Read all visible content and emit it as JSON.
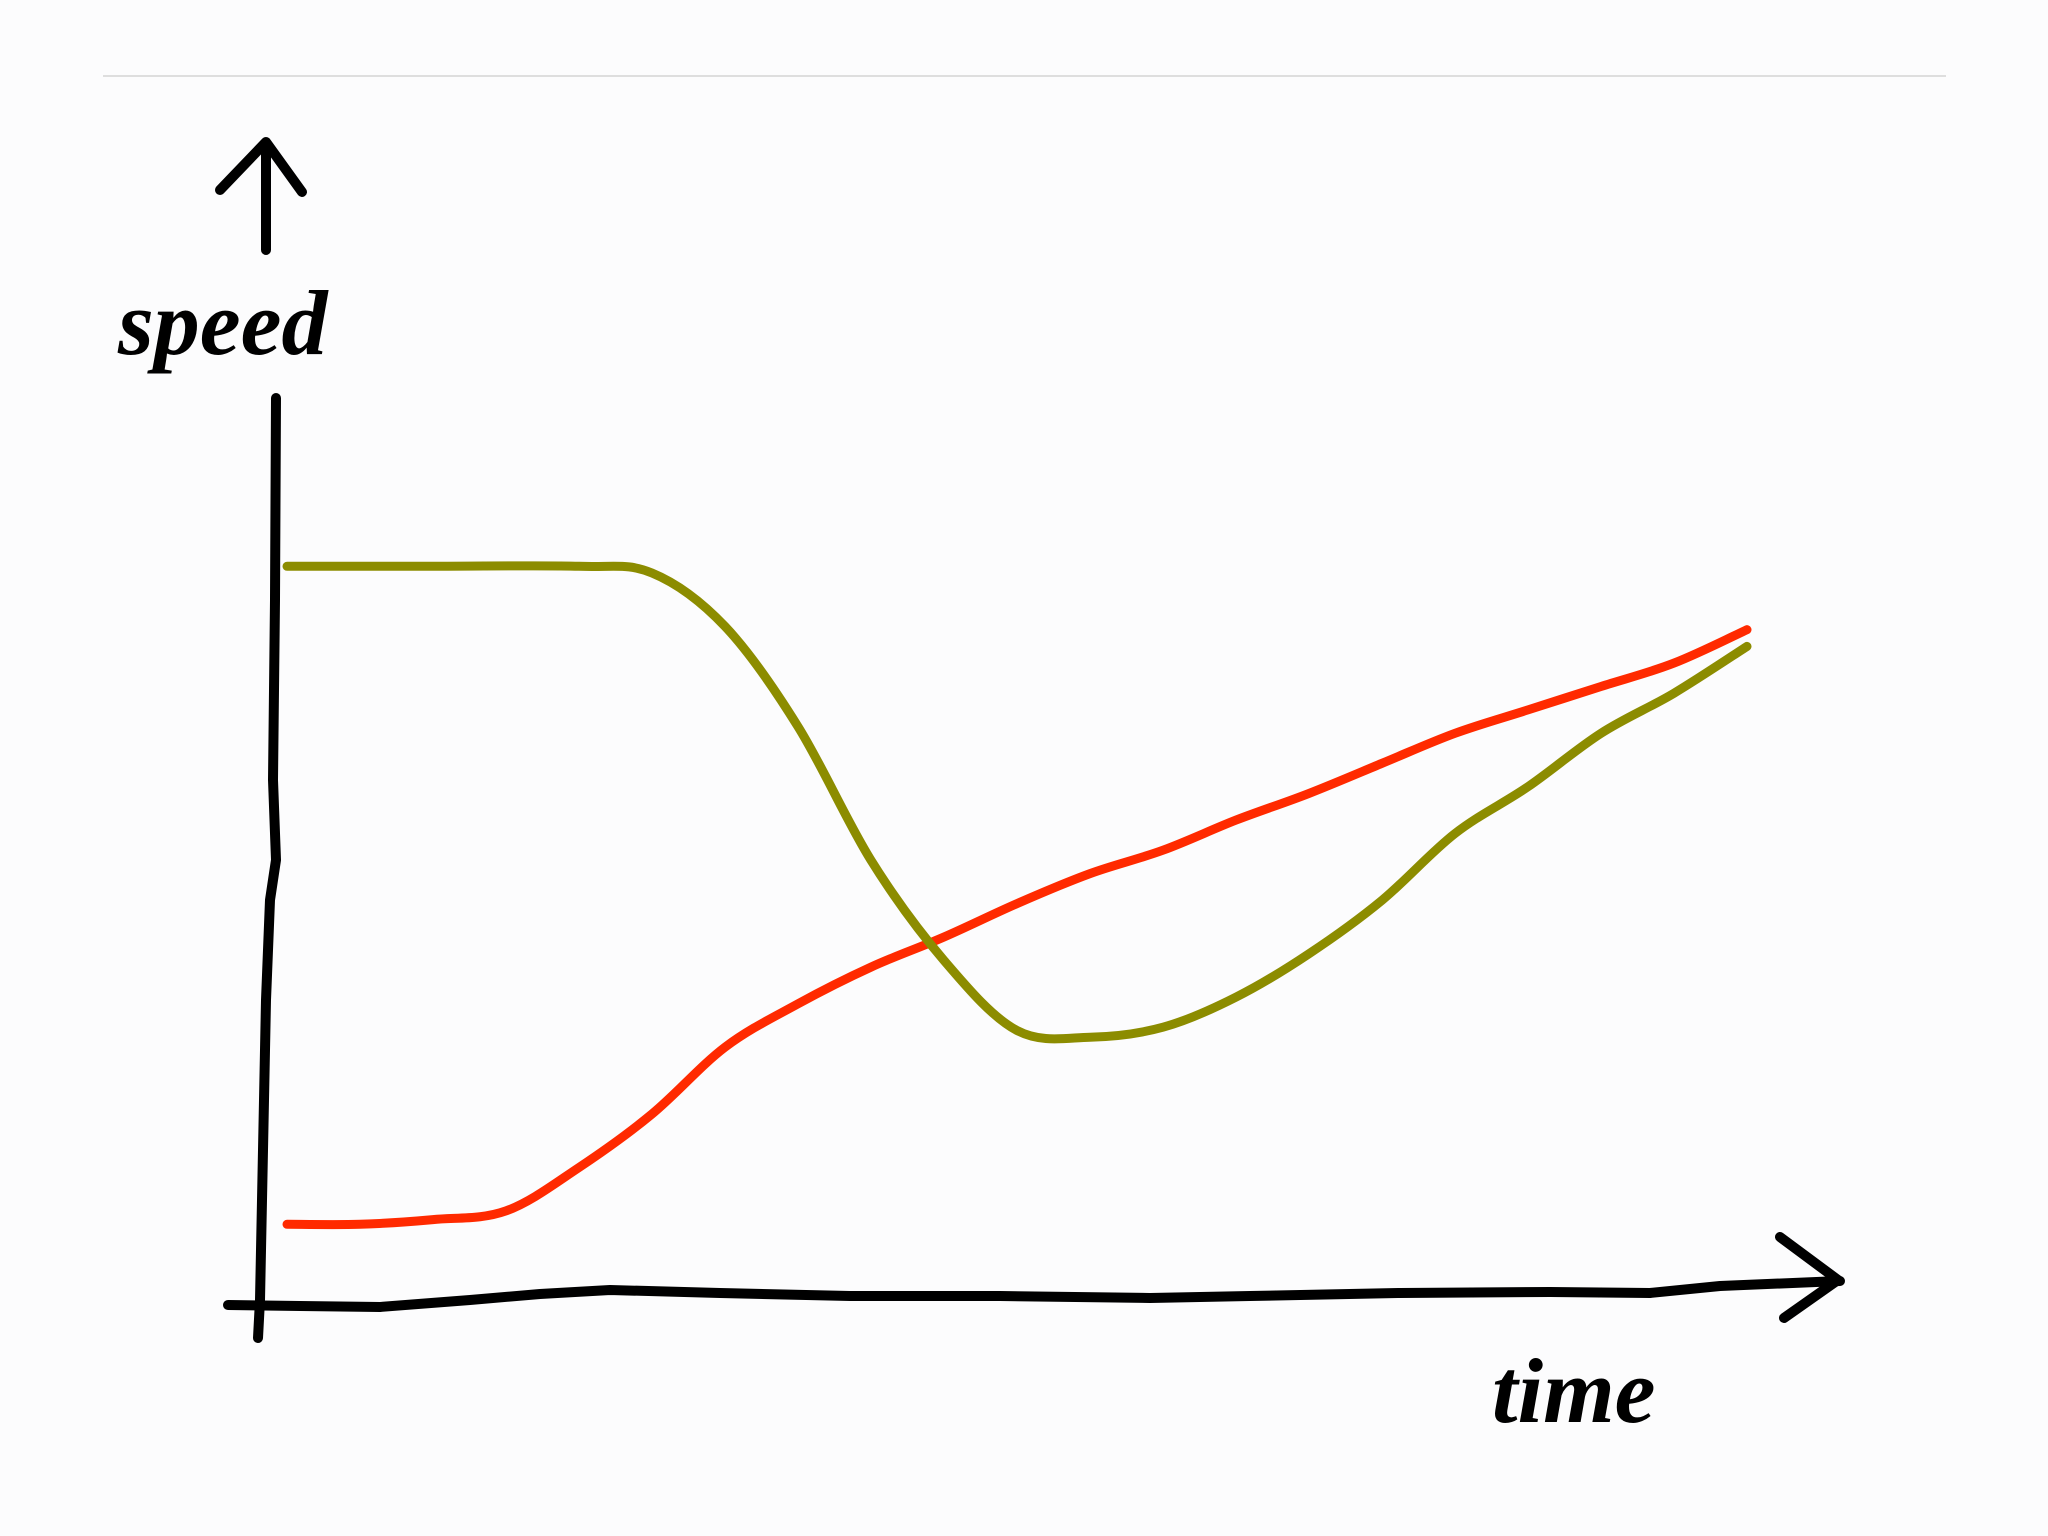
{
  "chart_data": {
    "type": "line",
    "title": "",
    "xlabel": "time",
    "ylabel": "speed",
    "xlim": [
      0,
      10
    ],
    "ylim": [
      0,
      10
    ],
    "grid": false,
    "legend": "none",
    "series": [
      {
        "color": "#ff2a00",
        "x": [
          0,
          0.5,
          1,
          1.5,
          2,
          2.5,
          3,
          3.5,
          4,
          4.5,
          5,
          5.5,
          6,
          6.5,
          7,
          7.5,
          8,
          8.5,
          9,
          9.5,
          10
        ],
        "y": [
          0.55,
          0.55,
          0.62,
          0.75,
          1.4,
          2.2,
          3.2,
          3.85,
          4.4,
          4.85,
          5.35,
          5.8,
          6.15,
          6.6,
          7.0,
          7.45,
          7.9,
          8.25,
          8.6,
          8.95,
          9.45
        ]
      },
      {
        "color": "#8c8c00",
        "x": [
          0,
          1,
          2,
          2.5,
          3,
          3.5,
          4,
          4.5,
          5,
          5.5,
          6,
          6.5,
          7,
          7.5,
          8,
          8.5,
          9,
          9.5,
          10
        ],
        "y": [
          10.4,
          10.4,
          10.4,
          10.3,
          9.5,
          8.0,
          6.0,
          4.5,
          3.45,
          3.35,
          3.5,
          3.95,
          4.6,
          5.4,
          6.4,
          7.1,
          7.9,
          8.5,
          9.2
        ]
      }
    ]
  }
}
